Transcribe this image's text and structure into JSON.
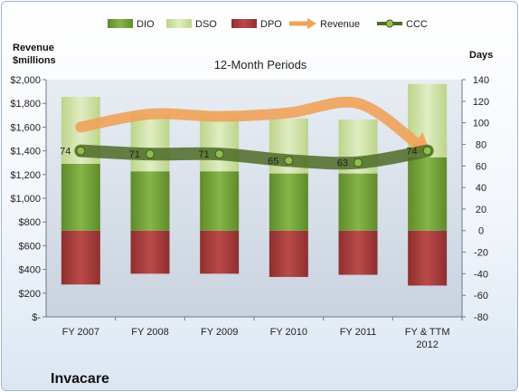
{
  "company": "Invacare",
  "chart_data": {
    "type": "bar",
    "title": "12-Month Periods",
    "categories": [
      "FY 2007",
      "FY 2008",
      "FY 2009",
      "FY 2010",
      "FY 2011",
      "FY & TTM 2012"
    ],
    "left_axis": {
      "label_line1": "Revenue",
      "label_line2": "$millions",
      "range": [
        0,
        2000
      ],
      "ticks": [
        "$-",
        "$200",
        "$400",
        "$600",
        "$800",
        "$1,000",
        "$1,200",
        "$1,400",
        "$1,600",
        "$1,800",
        "$2,000"
      ]
    },
    "right_axis": {
      "label": "Days",
      "range": [
        -80,
        140
      ],
      "ticks": [
        "-80",
        "-60",
        "-40",
        "-20",
        "0",
        "20",
        "40",
        "60",
        "80",
        "100",
        "120",
        "140"
      ]
    },
    "series": [
      {
        "name": "DIO",
        "axis": "right",
        "values": [
          62,
          55,
          55,
          53,
          53,
          68
        ],
        "color": "#77a33a"
      },
      {
        "name": "DSO",
        "axis": "right",
        "values": [
          62,
          53,
          53,
          51,
          50,
          68
        ],
        "color": "#cfe3a4"
      },
      {
        "name": "DPO",
        "axis": "right",
        "values": [
          -50,
          -40,
          -40,
          -43,
          -41,
          -51
        ],
        "color": "#a83c3c"
      },
      {
        "name": "Revenue",
        "axis": "left",
        "values": [
          1600,
          1710,
          1690,
          1720,
          1800,
          1400
        ],
        "color": "#f0a25a"
      },
      {
        "name": "CCC",
        "axis": "right",
        "values": [
          74,
          71,
          71,
          65,
          63,
          74
        ],
        "labels": [
          "74",
          "71",
          "71",
          "65",
          "63",
          "74"
        ],
        "color": "#4d6b27"
      }
    ],
    "legend": [
      "DIO",
      "DSO",
      "DPO",
      "Revenue",
      "CCC"
    ],
    "legend_position": "top",
    "grid": false
  }
}
